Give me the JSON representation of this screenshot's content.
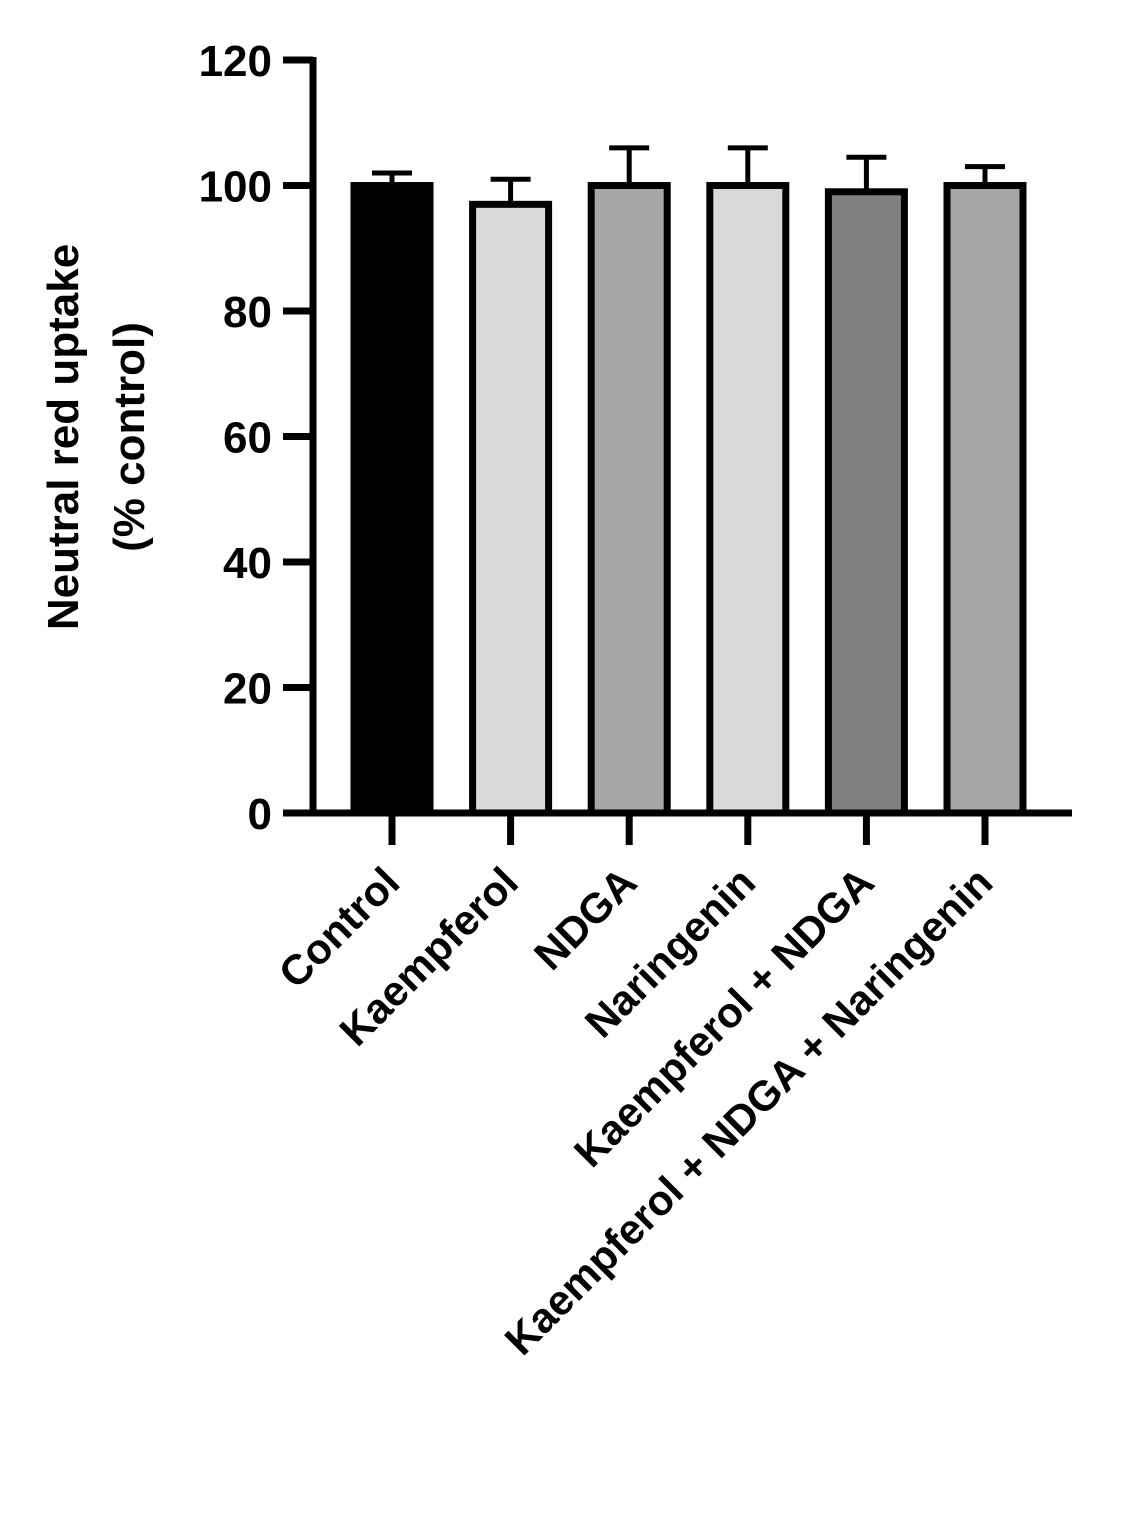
{
  "chart_data": {
    "type": "bar",
    "title": "",
    "ylabel_line1": "Neutral red uptake",
    "ylabel_line2": "(% control)",
    "xlabel": "",
    "ylim": [
      0,
      120
    ],
    "yticks": [
      0,
      20,
      40,
      60,
      80,
      100,
      120
    ],
    "categories": [
      "Control",
      "Kaempferol",
      "NDGA",
      "Naringenin",
      "Kaempferol + NDGA",
      "Kaempferol + NDGA + Naringenin"
    ],
    "values": [
      100,
      97,
      100,
      100,
      99,
      100
    ],
    "errors": [
      2,
      4,
      6,
      6,
      5.5,
      3
    ],
    "bar_colors": [
      "#000000",
      "#d9d9d9",
      "#a6a6a8",
      "#d9d9d9",
      "#808080",
      "#a6a6a8"
    ],
    "legend": "none",
    "grid": false
  }
}
